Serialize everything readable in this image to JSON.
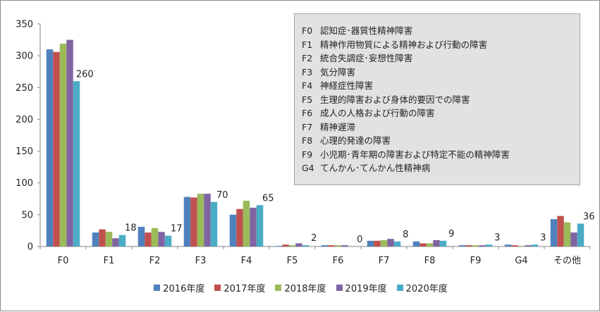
{
  "chart_data": {
    "type": "bar",
    "categories": [
      "F0",
      "F1",
      "F2",
      "F3",
      "F4",
      "F5",
      "F6",
      "F7",
      "F8",
      "F9",
      "G4",
      "その他"
    ],
    "series": [
      {
        "name": "2016年度",
        "color": "#4f81bd",
        "values": [
          310,
          22,
          31,
          78,
          50,
          1,
          2,
          9,
          8,
          2,
          3,
          43
        ]
      },
      {
        "name": "2017年度",
        "color": "#c0504d",
        "values": [
          306,
          27,
          22,
          77,
          59,
          3,
          2,
          9,
          5,
          2,
          2,
          48
        ]
      },
      {
        "name": "2018年度",
        "color": "#9bbb59",
        "values": [
          319,
          23,
          29,
          83,
          72,
          2,
          2,
          10,
          5,
          2,
          1,
          38
        ]
      },
      {
        "name": "2019年度",
        "color": "#8064a2",
        "values": [
          325,
          13,
          23,
          83,
          61,
          5,
          2,
          12,
          10,
          2,
          2,
          22
        ]
      },
      {
        "name": "2020年度",
        "color": "#4bacc6",
        "values": [
          260,
          18,
          17,
          70,
          65,
          2,
          0,
          8,
          9,
          3,
          3,
          36
        ]
      }
    ],
    "data_labels_series": "2020年度",
    "ylim": [
      0,
      350
    ],
    "yticks": [
      0,
      50,
      100,
      150,
      200,
      250,
      300,
      350
    ],
    "grid": false,
    "legend_position": "bottom",
    "title": "",
    "xlabel": "",
    "ylabel": ""
  },
  "code_legend": [
    {
      "code": "F0",
      "label": "認知症･器質性精神障害"
    },
    {
      "code": "F1",
      "label": "精神作用物質による精神および行動の障害"
    },
    {
      "code": "F2",
      "label": "統合失調症･妄想性障害"
    },
    {
      "code": "F3",
      "label": "気分障害"
    },
    {
      "code": "F4",
      "label": "神経症性障害"
    },
    {
      "code": "F5",
      "label": "生理的障害および身体的要因での障害"
    },
    {
      "code": "F6",
      "label": "成人の人格および行動の障害"
    },
    {
      "code": "F7",
      "label": "精神遅滞"
    },
    {
      "code": "F8",
      "label": "心理的発達の障害"
    },
    {
      "code": "F9",
      "label": "小児期･青年期の障害および特定不能の精神障害"
    },
    {
      "code": "G4",
      "label": "てんかん･てんかん性精神病"
    }
  ]
}
